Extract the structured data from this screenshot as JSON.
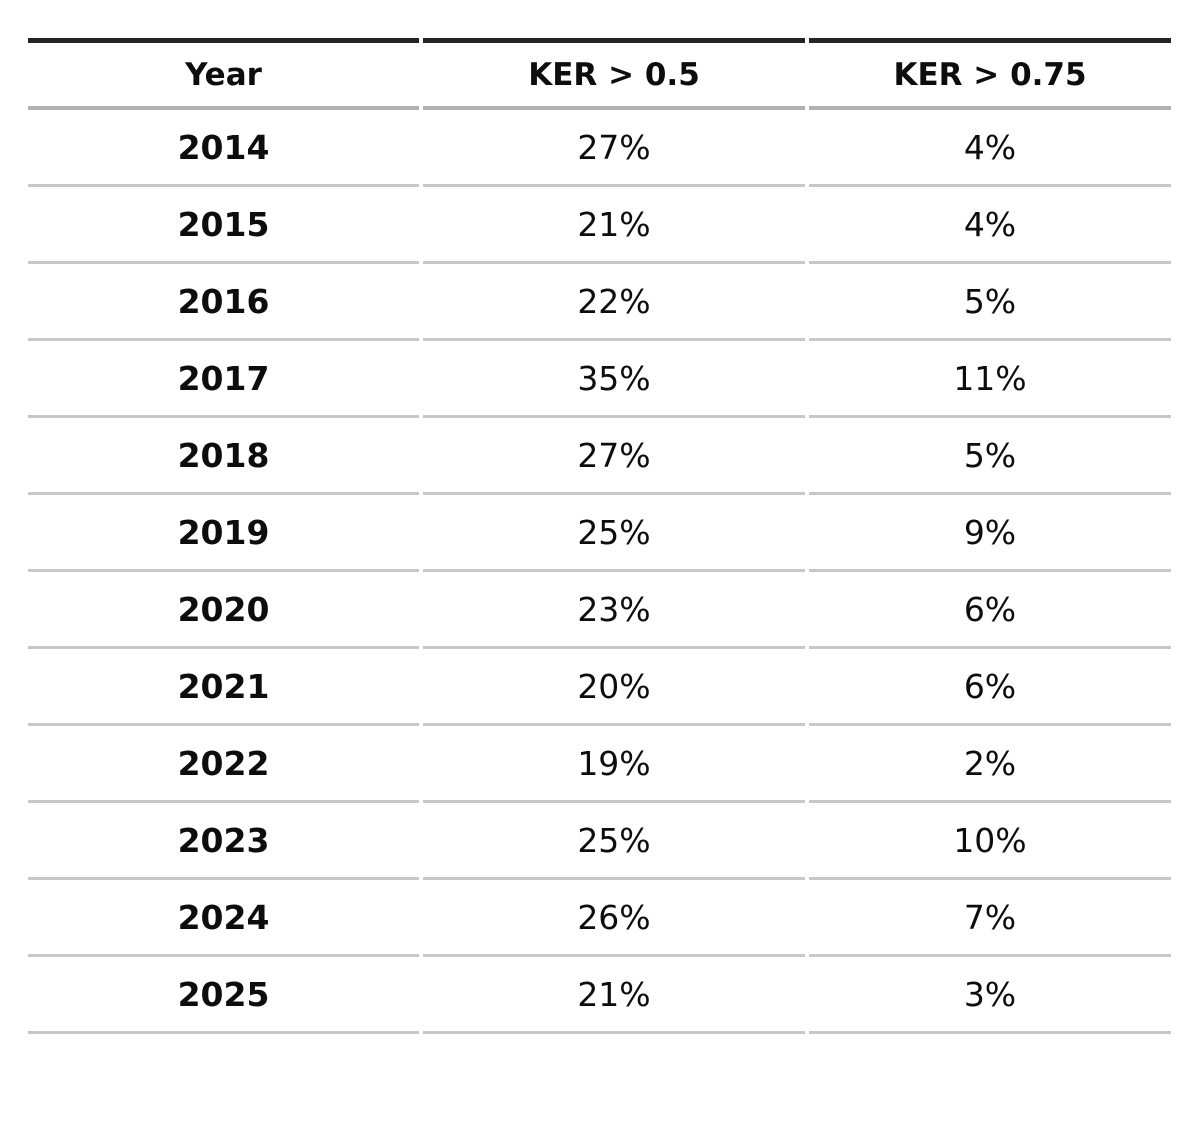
{
  "chart_data": {
    "type": "table",
    "columns": [
      "Year",
      "KER > 0.5",
      "KER > 0.75"
    ],
    "rows": [
      [
        "2014",
        "27%",
        "4%"
      ],
      [
        "2015",
        "21%",
        "4%"
      ],
      [
        "2016",
        "22%",
        "5%"
      ],
      [
        "2017",
        "35%",
        "11%"
      ],
      [
        "2018",
        "27%",
        "5%"
      ],
      [
        "2019",
        "25%",
        "9%"
      ],
      [
        "2020",
        "23%",
        "6%"
      ],
      [
        "2021",
        "20%",
        "6%"
      ],
      [
        "2022",
        "19%",
        "2%"
      ],
      [
        "2023",
        "25%",
        "10%"
      ],
      [
        "2024",
        "26%",
        "7%"
      ],
      [
        "2025",
        "21%",
        "3%"
      ]
    ],
    "series": [
      {
        "name": "KER > 0.5",
        "values": [
          27,
          21,
          22,
          35,
          27,
          25,
          23,
          20,
          19,
          25,
          26,
          21
        ]
      },
      {
        "name": "KER > 0.75",
        "values": [
          4,
          4,
          5,
          11,
          5,
          9,
          6,
          6,
          2,
          10,
          7,
          3
        ]
      }
    ],
    "categories": [
      "2014",
      "2015",
      "2016",
      "2017",
      "2018",
      "2019",
      "2020",
      "2021",
      "2022",
      "2023",
      "2024",
      "2025"
    ],
    "value_unit": "%",
    "layout_hints": {
      "header_bold": true,
      "year_column_bold": true,
      "cell_alignment": "center",
      "grid": "horizontal-rules-only"
    }
  },
  "colors": {
    "background": "#ffffff",
    "text": "#0d0d0d",
    "top_rule": "#242424",
    "header_rule": "#b2b2b2",
    "row_rule": "#c8c8c8"
  }
}
